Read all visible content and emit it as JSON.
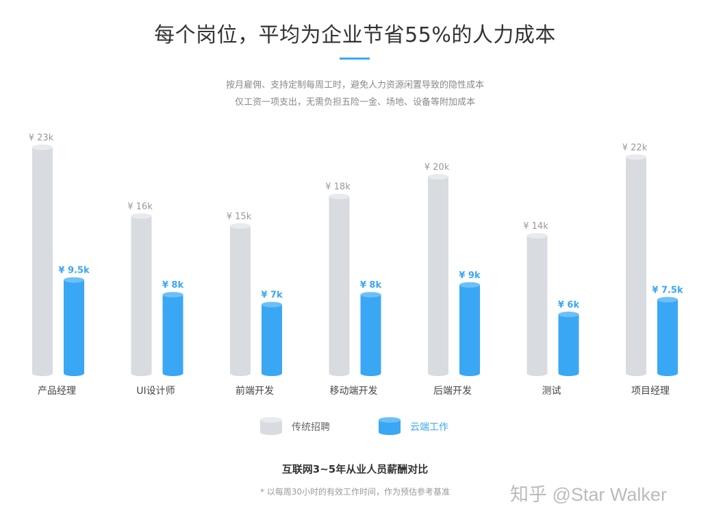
{
  "header": {
    "title": "每个岗位，平均为企业节省55%的人力成本",
    "subtitle_line1": "按月雇佣、支持定制每周工时，避免人力资源闲置导致的隐性成本",
    "subtitle_line2": "仅工资一项支出，无需负担五险一金、场地、设备等附加成本"
  },
  "chart_data": {
    "type": "bar",
    "categories": [
      "产品经理",
      "UI设计师",
      "前端开发",
      "移动端开发",
      "后端开发",
      "测试",
      "项目经理"
    ],
    "series": [
      {
        "name": "传统招聘",
        "values": [
          23,
          16,
          15,
          18,
          20,
          14,
          22
        ],
        "labels": [
          "¥ 23k",
          "¥ 16k",
          "¥ 15k",
          "¥ 18k",
          "¥ 20k",
          "¥ 14k",
          "¥ 22k"
        ],
        "color": "#d8dbe0"
      },
      {
        "name": "云端工作",
        "values": [
          9.5,
          8,
          7,
          8,
          9,
          6,
          7.5
        ],
        "labels": [
          "¥ 9.5k",
          "¥ 8k",
          "¥ 7k",
          "¥ 8k",
          "¥ 9k",
          "¥ 6k",
          "¥ 7.5k"
        ],
        "color": "#3aa7f4"
      }
    ],
    "ylim": [
      0,
      23
    ],
    "grid": false,
    "legend": "bottom-center"
  },
  "caption": "互联网3~5年从业人员薪酬对比",
  "footnote": "* 以每周30小时的有效工作时间，作为预估参考基准",
  "watermark": "知乎 @Star Walker",
  "colors": {
    "accent": "#3aa7f4",
    "traditional": "#d8dbe0",
    "title": "#333333"
  }
}
